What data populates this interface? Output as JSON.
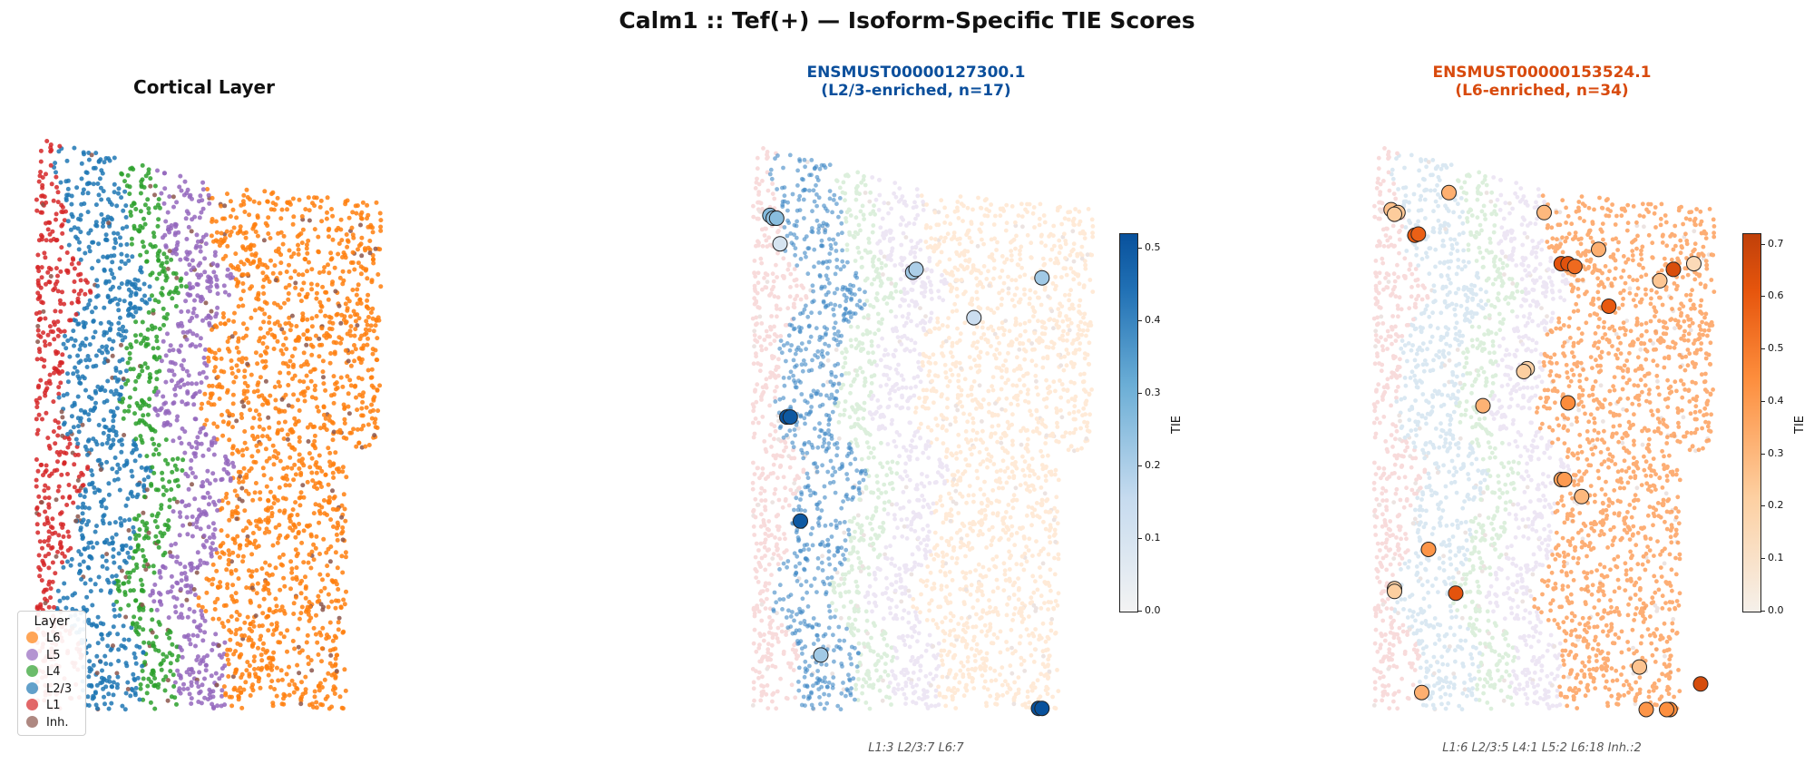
{
  "figure_title": "Calm1 :: Tef(+)  —  Isoform-Specific TIE Scores",
  "panels": {
    "layer": {
      "title": "Cortical Layer"
    },
    "iso1": {
      "title_line1": "ENSMUST00000127300.1",
      "title_line2": "(L2/3-enriched, n=17)",
      "counts": "L1:3  L2/3:7  L6:7",
      "cbar_label": "TIE",
      "cbar_ticks": [
        "0.0",
        "0.1",
        "0.2",
        "0.3",
        "0.4",
        "0.5"
      ]
    },
    "iso2": {
      "title_line1": "ENSMUST00000153524.1",
      "title_line2": "(L6-enriched, n=34)",
      "counts": "L1:6  L2/3:5  L4:1  L5:2  L6:18  Inh.:2",
      "cbar_label": "TIE",
      "cbar_ticks": [
        "0.0",
        "0.1",
        "0.2",
        "0.3",
        "0.4",
        "0.5",
        "0.6",
        "0.7"
      ]
    }
  },
  "legend": {
    "title": "Layer",
    "items": [
      {
        "label": "L6",
        "color": "#ff7f0e"
      },
      {
        "label": "L5",
        "color": "#9467bd"
      },
      {
        "label": "L4",
        "color": "#2ca02c"
      },
      {
        "label": "L2/3",
        "color": "#1f77b4"
      },
      {
        "label": "L1",
        "color": "#d62728"
      },
      {
        "label": "Inh.",
        "color": "#8c564b"
      }
    ]
  },
  "chart_data": [
    {
      "type": "scatter",
      "title": "Cortical Layer",
      "categories": [
        "L6",
        "L5",
        "L4",
        "L2/3",
        "L1",
        "Inh."
      ],
      "colors": {
        "L6": "#ff7f0e",
        "L5": "#9467bd",
        "L4": "#2ca02c",
        "L2/3": "#1f77b4",
        "L1": "#d62728",
        "Inh.": "#8c564b"
      },
      "legend": "lower-left",
      "grid": false
    },
    {
      "type": "scatter",
      "title": "ENSMUST00000127300.1 (L2/3-enriched, n=17)",
      "colormap": "Blues",
      "colorbar_label": "TIE",
      "colorbar_range": [
        0.0,
        0.52
      ],
      "spots": [
        {
          "x": 0.05,
          "y": 0.13,
          "tie": 0.27
        },
        {
          "x": 0.06,
          "y": 0.135,
          "tie": 0.25
        },
        {
          "x": 0.07,
          "y": 0.135,
          "tie": 0.26
        },
        {
          "x": 0.08,
          "y": 0.18,
          "tie": 0.1
        },
        {
          "x": 0.47,
          "y": 0.23,
          "tie": 0.22
        },
        {
          "x": 0.48,
          "y": 0.225,
          "tie": 0.2
        },
        {
          "x": 0.85,
          "y": 0.24,
          "tie": 0.22
        },
        {
          "x": 0.65,
          "y": 0.31,
          "tie": 0.14
        },
        {
          "x": 0.1,
          "y": 0.485,
          "tie": 0.52
        },
        {
          "x": 0.11,
          "y": 0.485,
          "tie": 0.5
        },
        {
          "x": 0.14,
          "y": 0.668,
          "tie": 0.5
        },
        {
          "x": 0.2,
          "y": 0.904,
          "tie": 0.22
        },
        {
          "x": 0.84,
          "y": 0.998,
          "tie": 0.52
        },
        {
          "x": 0.85,
          "y": 0.998,
          "tie": 0.52
        }
      ]
    },
    {
      "type": "scatter",
      "title": "ENSMUST00000153524.1 (L6-enriched, n=34)",
      "colormap": "Oranges",
      "colorbar_label": "TIE",
      "colorbar_range": [
        0.0,
        0.72
      ],
      "spots": [
        {
          "x": 0.22,
          "y": 0.09,
          "tie": 0.33
        },
        {
          "x": 0.05,
          "y": 0.12,
          "tie": 0.27
        },
        {
          "x": 0.07,
          "y": 0.125,
          "tie": 0.25
        },
        {
          "x": 0.06,
          "y": 0.128,
          "tie": 0.23
        },
        {
          "x": 0.5,
          "y": 0.125,
          "tie": 0.3
        },
        {
          "x": 0.12,
          "y": 0.165,
          "tie": 0.6
        },
        {
          "x": 0.13,
          "y": 0.163,
          "tie": 0.58
        },
        {
          "x": 0.66,
          "y": 0.19,
          "tie": 0.33
        },
        {
          "x": 0.55,
          "y": 0.215,
          "tie": 0.62
        },
        {
          "x": 0.57,
          "y": 0.215,
          "tie": 0.63
        },
        {
          "x": 0.59,
          "y": 0.22,
          "tie": 0.55
        },
        {
          "x": 0.88,
          "y": 0.225,
          "tie": 0.65
        },
        {
          "x": 0.94,
          "y": 0.215,
          "tie": 0.15
        },
        {
          "x": 0.84,
          "y": 0.245,
          "tie": 0.25
        },
        {
          "x": 0.69,
          "y": 0.29,
          "tie": 0.6
        },
        {
          "x": 0.45,
          "y": 0.4,
          "tie": 0.2
        },
        {
          "x": 0.44,
          "y": 0.405,
          "tie": 0.22
        },
        {
          "x": 0.32,
          "y": 0.465,
          "tie": 0.32
        },
        {
          "x": 0.57,
          "y": 0.46,
          "tie": 0.45
        },
        {
          "x": 0.55,
          "y": 0.595,
          "tie": 0.38
        },
        {
          "x": 0.56,
          "y": 0.595,
          "tie": 0.4
        },
        {
          "x": 0.61,
          "y": 0.625,
          "tie": 0.3
        },
        {
          "x": 0.16,
          "y": 0.718,
          "tie": 0.42
        },
        {
          "x": 0.06,
          "y": 0.787,
          "tie": 0.2
        },
        {
          "x": 0.06,
          "y": 0.792,
          "tie": 0.22
        },
        {
          "x": 0.24,
          "y": 0.795,
          "tie": 0.62
        },
        {
          "x": 0.78,
          "y": 0.925,
          "tie": 0.26
        },
        {
          "x": 0.14,
          "y": 0.97,
          "tie": 0.33
        },
        {
          "x": 0.96,
          "y": 0.955,
          "tie": 0.66
        },
        {
          "x": 0.8,
          "y": 1.0,
          "tie": 0.42
        },
        {
          "x": 0.87,
          "y": 1.0,
          "tie": 0.45
        },
        {
          "x": 0.86,
          "y": 1.0,
          "tie": 0.44
        }
      ]
    }
  ]
}
